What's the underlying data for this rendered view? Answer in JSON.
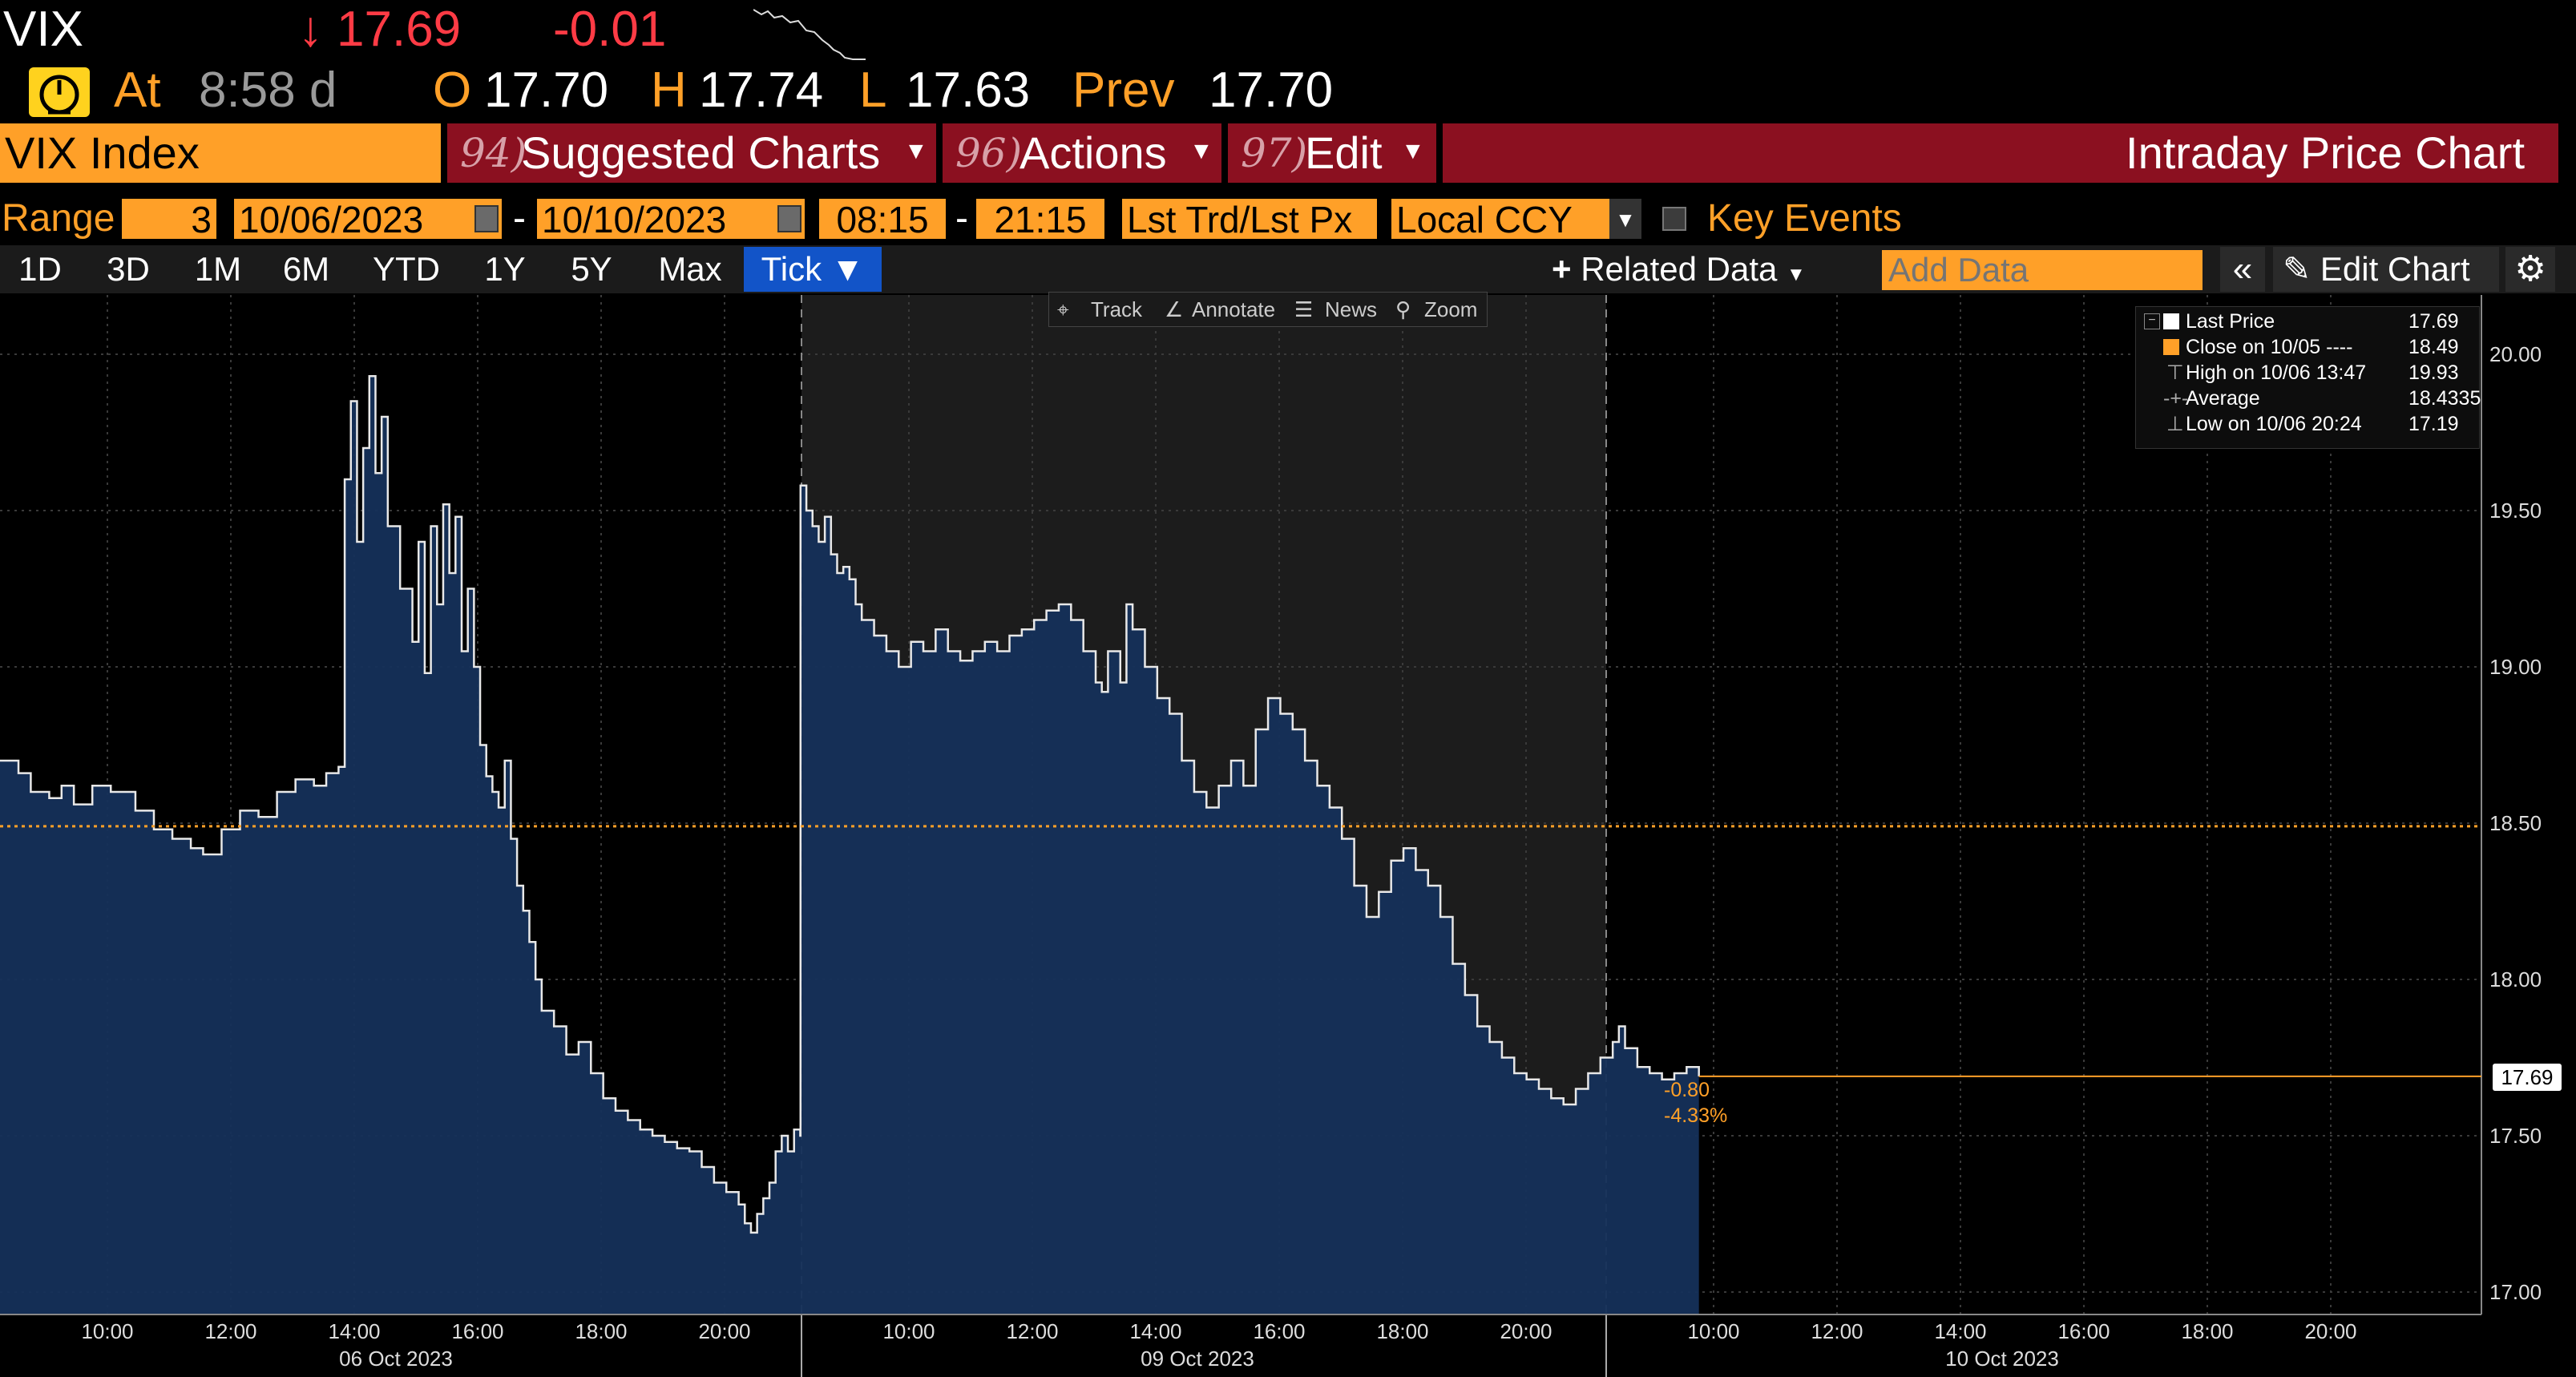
{
  "header": {
    "ticker": "VIX",
    "arrow": "↓",
    "last": "17.69",
    "change": "-0.01",
    "at_label": "At",
    "time": "8:58 d",
    "open_label": "O",
    "open": "17.70",
    "high_label": "H",
    "high": "17.74",
    "low_label": "L",
    "low": "17.63",
    "prev_label": "Prev",
    "prev": "17.70"
  },
  "menubar": {
    "security": "VIX Index",
    "suggested_num": "94)",
    "suggested_label": "Suggested Charts",
    "actions_num": "96)",
    "actions_label": "Actions",
    "edit_num": "97)",
    "edit_label": "Edit",
    "title": "Intraday Price Chart"
  },
  "range_bar": {
    "range_label": "Range",
    "range_value": "3",
    "start_date": "10/06/2023",
    "dash1": "-",
    "end_date": "10/10/2023",
    "start_time": "08:15",
    "dash2": "-",
    "end_time": "21:15",
    "price_field": "Lst Trd/Lst Px",
    "currency": "Local CCY",
    "key_events": "Key Events"
  },
  "period_bar": {
    "periods": [
      "1D",
      "3D",
      "1M",
      "6M",
      "YTD",
      "1Y",
      "5Y",
      "Max"
    ],
    "selected": "Tick ▼",
    "related_data": "Related Data",
    "add_data_placeholder": "Add Data",
    "edit_chart": "Edit Chart"
  },
  "chart_tools": {
    "track": "Track",
    "annotate": "Annotate",
    "news": "News",
    "zoom": "Zoom"
  },
  "legend": {
    "rows": [
      {
        "label": "Last Price",
        "value": "17.69"
      },
      {
        "label": "Close on 10/05 ----",
        "value": "18.49"
      },
      {
        "label": "High on 10/06 13:47",
        "value": "19.93"
      },
      {
        "label": "Average",
        "value": "18.4335"
      },
      {
        "label": "Low on 10/06 20:24",
        "value": "17.19"
      }
    ]
  },
  "colors": {
    "amber": "#ffa028",
    "red_band": "#8b1020",
    "accent_blue": "#1254c8",
    "area_fill": "#15305a",
    "loss_red": "#ff3b45"
  },
  "chart_data": {
    "type": "area",
    "ylim": [
      16.95,
      20.1
    ],
    "yticks": [
      "17.00",
      "17.50",
      "18.00",
      "18.50",
      "19.00",
      "19.50",
      "20.00"
    ],
    "reference_line": {
      "label": "Close on 10/05",
      "value": 18.49
    },
    "last_label": "17.69",
    "change_abs": "-0.80",
    "change_pct": "-4.33%",
    "days": [
      {
        "label": "06 Oct 2023",
        "times": [
          "10:00",
          "12:00",
          "14:00",
          "16:00",
          "18:00",
          "20:00"
        ]
      },
      {
        "label": "09 Oct 2023",
        "times": [
          "10:00",
          "12:00",
          "14:00",
          "16:00",
          "18:00",
          "20:00"
        ]
      },
      {
        "label": "10 Oct 2023",
        "times": [
          "10:00",
          "12:00",
          "14:00",
          "16:00",
          "18:00",
          "20:00"
        ]
      }
    ],
    "series": [
      {
        "values": [
          [
            0,
            18.7
          ],
          [
            3,
            18.66
          ],
          [
            5,
            18.6
          ],
          [
            8,
            18.58
          ],
          [
            10,
            18.62
          ],
          [
            12,
            18.56
          ],
          [
            15,
            18.62
          ],
          [
            18,
            18.6
          ],
          [
            22,
            18.54
          ],
          [
            25,
            18.48
          ],
          [
            28,
            18.45
          ],
          [
            31,
            18.42
          ],
          [
            33,
            18.4
          ],
          [
            36,
            18.48
          ],
          [
            39,
            18.54
          ],
          [
            42,
            18.52
          ],
          [
            45,
            18.6
          ],
          [
            48,
            18.64
          ],
          [
            51,
            18.62
          ],
          [
            53,
            18.66
          ],
          [
            55,
            18.68
          ],
          [
            56,
            19.6
          ],
          [
            57,
            19.85
          ],
          [
            58,
            19.4
          ],
          [
            59,
            19.7
          ],
          [
            60,
            19.93
          ],
          [
            61,
            19.62
          ],
          [
            62,
            19.8
          ],
          [
            63,
            19.45
          ],
          [
            65,
            19.25
          ],
          [
            67,
            19.08
          ],
          [
            68,
            19.4
          ],
          [
            69,
            18.98
          ],
          [
            70,
            19.45
          ],
          [
            71,
            19.2
          ],
          [
            72,
            19.52
          ],
          [
            73,
            19.3
          ],
          [
            74,
            19.48
          ],
          [
            75,
            19.05
          ],
          [
            76,
            19.25
          ],
          [
            77,
            19.0
          ],
          [
            78,
            18.75
          ],
          [
            79,
            18.65
          ],
          [
            80,
            18.6
          ],
          [
            81,
            18.55
          ],
          [
            82,
            18.7
          ],
          [
            83,
            18.45
          ],
          [
            84,
            18.3
          ],
          [
            85,
            18.22
          ],
          [
            86,
            18.12
          ],
          [
            87,
            18.0
          ],
          [
            88,
            17.9
          ],
          [
            90,
            17.85
          ],
          [
            92,
            17.76
          ],
          [
            94,
            17.8
          ],
          [
            96,
            17.7
          ],
          [
            98,
            17.62
          ],
          [
            100,
            17.58
          ],
          [
            102,
            17.55
          ],
          [
            104,
            17.52
          ],
          [
            106,
            17.5
          ],
          [
            108,
            17.48
          ],
          [
            110,
            17.46
          ],
          [
            112,
            17.45
          ],
          [
            114,
            17.4
          ],
          [
            116,
            17.35
          ],
          [
            118,
            17.32
          ],
          [
            120,
            17.28
          ],
          [
            121,
            17.22
          ],
          [
            122,
            17.19
          ],
          [
            123,
            17.25
          ],
          [
            124,
            17.3
          ],
          [
            125,
            17.35
          ],
          [
            126,
            17.45
          ],
          [
            127,
            17.5
          ],
          [
            128,
            17.45
          ],
          [
            129,
            17.52
          ],
          [
            130,
            17.5
          ],
          [
            130.05,
            19.58
          ],
          [
            131,
            19.5
          ],
          [
            132,
            19.45
          ],
          [
            133,
            19.4
          ],
          [
            134,
            19.48
          ],
          [
            135,
            19.36
          ],
          [
            136,
            19.3
          ],
          [
            137,
            19.32
          ],
          [
            138,
            19.28
          ],
          [
            139,
            19.2
          ],
          [
            140,
            19.15
          ],
          [
            142,
            19.1
          ],
          [
            144,
            19.05
          ],
          [
            146,
            19.0
          ],
          [
            148,
            19.08
          ],
          [
            150,
            19.05
          ],
          [
            152,
            19.12
          ],
          [
            154,
            19.05
          ],
          [
            156,
            19.02
          ],
          [
            158,
            19.05
          ],
          [
            160,
            19.08
          ],
          [
            162,
            19.05
          ],
          [
            164,
            19.1
          ],
          [
            166,
            19.12
          ],
          [
            168,
            19.15
          ],
          [
            170,
            19.18
          ],
          [
            172,
            19.2
          ],
          [
            174,
            19.15
          ],
          [
            176,
            19.05
          ],
          [
            178,
            18.95
          ],
          [
            179,
            18.92
          ],
          [
            180,
            19.05
          ],
          [
            182,
            18.95
          ],
          [
            183,
            19.2
          ],
          [
            184,
            19.12
          ],
          [
            186,
            19.0
          ],
          [
            188,
            18.9
          ],
          [
            190,
            18.85
          ],
          [
            192,
            18.7
          ],
          [
            194,
            18.6
          ],
          [
            196,
            18.55
          ],
          [
            198,
            18.62
          ],
          [
            200,
            18.7
          ],
          [
            202,
            18.62
          ],
          [
            204,
            18.8
          ],
          [
            206,
            18.9
          ],
          [
            208,
            18.85
          ],
          [
            210,
            18.8
          ],
          [
            212,
            18.7
          ],
          [
            214,
            18.62
          ],
          [
            216,
            18.55
          ],
          [
            218,
            18.45
          ],
          [
            220,
            18.3
          ],
          [
            222,
            18.2
          ],
          [
            224,
            18.28
          ],
          [
            226,
            18.38
          ],
          [
            228,
            18.42
          ],
          [
            230,
            18.35
          ],
          [
            232,
            18.3
          ],
          [
            234,
            18.2
          ],
          [
            236,
            18.05
          ],
          [
            238,
            17.95
          ],
          [
            240,
            17.85
          ],
          [
            242,
            17.8
          ],
          [
            244,
            17.75
          ],
          [
            246,
            17.7
          ],
          [
            248,
            17.68
          ],
          [
            250,
            17.65
          ],
          [
            252,
            17.62
          ],
          [
            254,
            17.6
          ],
          [
            256,
            17.65
          ],
          [
            258,
            17.7
          ],
          [
            260,
            17.75
          ],
          [
            262,
            17.8
          ],
          [
            263,
            17.85
          ],
          [
            264,
            17.78
          ],
          [
            266,
            17.72
          ],
          [
            268,
            17.7
          ],
          [
            270,
            17.68
          ],
          [
            272,
            17.7
          ],
          [
            274,
            17.72
          ],
          [
            276,
            17.69
          ]
        ]
      }
    ]
  }
}
